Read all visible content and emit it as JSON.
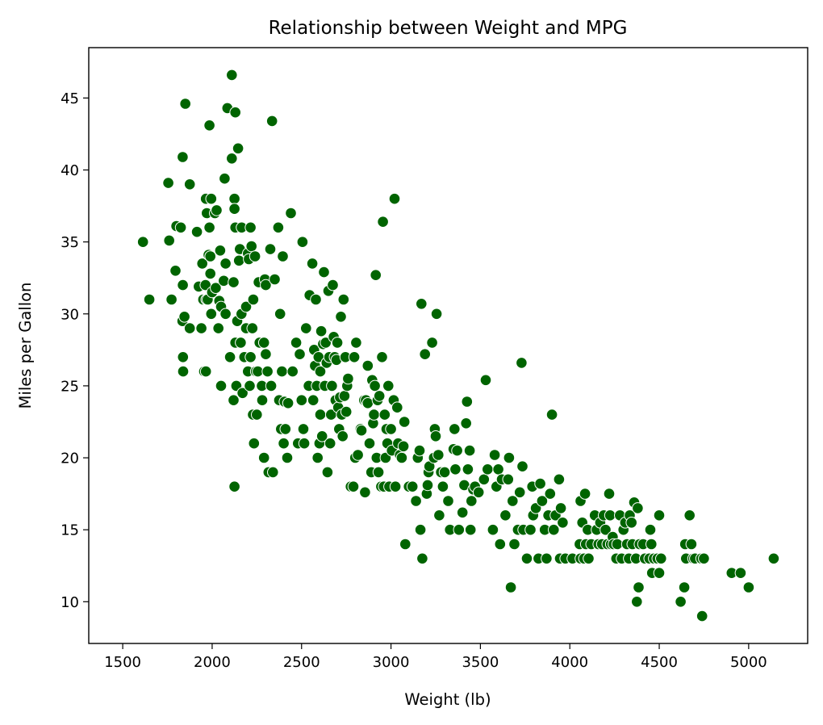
{
  "chart_data": {
    "type": "scatter",
    "title": "Relationship between Weight and MPG",
    "xlabel": "Weight (lb)",
    "ylabel": "Miles per Gallon",
    "xlim": [
      1310,
      5330
    ],
    "ylim": [
      7.1,
      48.5
    ],
    "xticks": [
      1500,
      2000,
      2500,
      3000,
      3500,
      4000,
      4500,
      5000
    ],
    "yticks": [
      10,
      15,
      20,
      25,
      30,
      35,
      40,
      45
    ],
    "grid": false,
    "legend": "none",
    "marker_color": "#006400",
    "marker_edge_color": "#ffffff",
    "points": [
      [
        1613,
        35
      ],
      [
        1649,
        31
      ],
      [
        1755,
        39.1
      ],
      [
        1760,
        35.1
      ],
      [
        1773,
        31
      ],
      [
        1795,
        33
      ],
      [
        1800,
        36.1
      ],
      [
        1825,
        36
      ],
      [
        1834,
        29.5
      ],
      [
        1835,
        40.9
      ],
      [
        1836,
        32
      ],
      [
        1837,
        27
      ],
      [
        1838,
        26
      ],
      [
        1845,
        29.8
      ],
      [
        1850,
        44.6
      ],
      [
        1875,
        39
      ],
      [
        1875,
        29
      ],
      [
        1915,
        35.7
      ],
      [
        1925,
        31.9
      ],
      [
        1940,
        29
      ],
      [
        1945,
        33.5
      ],
      [
        1950,
        31
      ],
      [
        1955,
        26
      ],
      [
        1963,
        32
      ],
      [
        1965,
        26
      ],
      [
        1965,
        38
      ],
      [
        1968,
        31
      ],
      [
        1970,
        37
      ],
      [
        1975,
        31
      ],
      [
        1980,
        34.1
      ],
      [
        1985,
        36
      ],
      [
        1985,
        43.1
      ],
      [
        1990,
        34
      ],
      [
        1990,
        32.8
      ],
      [
        1995,
        30
      ],
      [
        1995,
        38
      ],
      [
        2000,
        31.5
      ],
      [
        2015,
        37
      ],
      [
        2020,
        31.8
      ],
      [
        2025,
        37.2
      ],
      [
        2035,
        29
      ],
      [
        2040,
        30.9
      ],
      [
        2045,
        34.4
      ],
      [
        2050,
        30.5
      ],
      [
        2050,
        25
      ],
      [
        2065,
        32.3
      ],
      [
        2070,
        39.4
      ],
      [
        2075,
        33.5
      ],
      [
        2075,
        30
      ],
      [
        2085,
        44.3
      ],
      [
        2100,
        27
      ],
      [
        2110,
        46.6
      ],
      [
        2110,
        40.8
      ],
      [
        2120,
        32.2
      ],
      [
        2120,
        24
      ],
      [
        2125,
        18
      ],
      [
        2125,
        38
      ],
      [
        2125,
        37.3
      ],
      [
        2130,
        36
      ],
      [
        2130,
        28
      ],
      [
        2130,
        44
      ],
      [
        2135,
        25
      ],
      [
        2140,
        29.5
      ],
      [
        2145,
        41.5
      ],
      [
        2150,
        33.7
      ],
      [
        2155,
        34.5
      ],
      [
        2160,
        28
      ],
      [
        2164,
        30
      ],
      [
        2165,
        36
      ],
      [
        2170,
        24.5
      ],
      [
        2180,
        27
      ],
      [
        2190,
        29
      ],
      [
        2190,
        30.5
      ],
      [
        2200,
        34.2
      ],
      [
        2200,
        26
      ],
      [
        2205,
        33.8
      ],
      [
        2210,
        25
      ],
      [
        2215,
        27
      ],
      [
        2215,
        36
      ],
      [
        2220,
        34.7
      ],
      [
        2225,
        29
      ],
      [
        2228,
        23
      ],
      [
        2230,
        31
      ],
      [
        2234,
        21
      ],
      [
        2240,
        34
      ],
      [
        2245,
        26
      ],
      [
        2250,
        23
      ],
      [
        2255,
        26
      ],
      [
        2260,
        32.2
      ],
      [
        2265,
        28
      ],
      [
        2278,
        25
      ],
      [
        2280,
        24
      ],
      [
        2290,
        28
      ],
      [
        2290,
        20
      ],
      [
        2295,
        32.4
      ],
      [
        2300,
        27.2
      ],
      [
        2300,
        32
      ],
      [
        2310,
        26
      ],
      [
        2315,
        19
      ],
      [
        2325,
        34.5
      ],
      [
        2330,
        25
      ],
      [
        2335,
        43.4
      ],
      [
        2340,
        19
      ],
      [
        2350,
        32.4
      ],
      [
        2370,
        36
      ],
      [
        2375,
        24
      ],
      [
        2380,
        30
      ],
      [
        2385,
        22
      ],
      [
        2390,
        26
      ],
      [
        2395,
        34
      ],
      [
        2400,
        21
      ],
      [
        2405,
        23.9
      ],
      [
        2410,
        22
      ],
      [
        2420,
        20
      ],
      [
        2425,
        23.8
      ],
      [
        2440,
        37
      ],
      [
        2450,
        26
      ],
      [
        2470,
        28
      ],
      [
        2480,
        21
      ],
      [
        2490,
        27.2
      ],
      [
        2500,
        24
      ],
      [
        2505,
        35
      ],
      [
        2510,
        22
      ],
      [
        2515,
        21
      ],
      [
        2525,
        29
      ],
      [
        2540,
        25
      ],
      [
        2545,
        31.3
      ],
      [
        2560,
        33.5
      ],
      [
        2565,
        24
      ],
      [
        2570,
        27.5
      ],
      [
        2575,
        26.4
      ],
      [
        2580,
        31
      ],
      [
        2585,
        25
      ],
      [
        2590,
        20
      ],
      [
        2595,
        27
      ],
      [
        2600,
        21
      ],
      [
        2605,
        23
      ],
      [
        2605,
        26
      ],
      [
        2610,
        28.8
      ],
      [
        2615,
        21.5
      ],
      [
        2620,
        27.9
      ],
      [
        2625,
        32.9
      ],
      [
        2630,
        25
      ],
      [
        2635,
        28
      ],
      [
        2640,
        26.6
      ],
      [
        2645,
        19
      ],
      [
        2650,
        31.6
      ],
      [
        2655,
        27
      ],
      [
        2660,
        21
      ],
      [
        2665,
        23
      ],
      [
        2670,
        25
      ],
      [
        2675,
        32
      ],
      [
        2680,
        28.4
      ],
      [
        2685,
        27
      ],
      [
        2690,
        24
      ],
      [
        2695,
        26.8
      ],
      [
        2700,
        28
      ],
      [
        2705,
        23.5
      ],
      [
        2710,
        22
      ],
      [
        2715,
        24.2
      ],
      [
        2720,
        29.8
      ],
      [
        2725,
        23
      ],
      [
        2730,
        21.5
      ],
      [
        2735,
        31
      ],
      [
        2740,
        24.3
      ],
      [
        2745,
        27
      ],
      [
        2750,
        23.2
      ],
      [
        2755,
        25
      ],
      [
        2760,
        25.5
      ],
      [
        2775,
        18
      ],
      [
        2790,
        18
      ],
      [
        2795,
        27
      ],
      [
        2800,
        20
      ],
      [
        2805,
        28
      ],
      [
        2815,
        20.2
      ],
      [
        2830,
        22
      ],
      [
        2835,
        21.9
      ],
      [
        2850,
        24
      ],
      [
        2855,
        17.6
      ],
      [
        2860,
        24
      ],
      [
        2870,
        23.8
      ],
      [
        2870,
        26.4
      ],
      [
        2880,
        21
      ],
      [
        2890,
        19
      ],
      [
        2895,
        25.4
      ],
      [
        2900,
        22.4
      ],
      [
        2905,
        23
      ],
      [
        2910,
        25
      ],
      [
        2915,
        32.7
      ],
      [
        2920,
        20
      ],
      [
        2925,
        24
      ],
      [
        2930,
        19
      ],
      [
        2935,
        24.3
      ],
      [
        2945,
        18
      ],
      [
        2950,
        27
      ],
      [
        2955,
        36.4
      ],
      [
        2960,
        18
      ],
      [
        2965,
        23
      ],
      [
        2970,
        20
      ],
      [
        2975,
        22
      ],
      [
        2980,
        21
      ],
      [
        2985,
        25
      ],
      [
        2990,
        18
      ],
      [
        3000,
        22
      ],
      [
        3005,
        20.5
      ],
      [
        3015,
        24
      ],
      [
        3020,
        38
      ],
      [
        3025,
        18
      ],
      [
        3035,
        23.5
      ],
      [
        3040,
        21
      ],
      [
        3050,
        20.2
      ],
      [
        3060,
        20
      ],
      [
        3070,
        20.8
      ],
      [
        3075,
        22.5
      ],
      [
        3080,
        14
      ],
      [
        3100,
        18
      ],
      [
        3120,
        18
      ],
      [
        3140,
        17
      ],
      [
        3150,
        20
      ],
      [
        3160,
        20.5
      ],
      [
        3165,
        15
      ],
      [
        3170,
        30.7
      ],
      [
        3175,
        13
      ],
      [
        3190,
        27.2
      ],
      [
        3200,
        17.5
      ],
      [
        3205,
        18.1
      ],
      [
        3210,
        19
      ],
      [
        3215,
        19.4
      ],
      [
        3230,
        28
      ],
      [
        3240,
        20
      ],
      [
        3245,
        22
      ],
      [
        3250,
        21.5
      ],
      [
        3255,
        30
      ],
      [
        3265,
        20.2
      ],
      [
        3270,
        16
      ],
      [
        3280,
        19
      ],
      [
        3290,
        18
      ],
      [
        3300,
        19
      ],
      [
        3320,
        17
      ],
      [
        3330,
        15
      ],
      [
        3350,
        20.6
      ],
      [
        3355,
        22
      ],
      [
        3360,
        19.2
      ],
      [
        3370,
        20.5
      ],
      [
        3380,
        15
      ],
      [
        3400,
        16.2
      ],
      [
        3410,
        18.1
      ],
      [
        3420,
        22.4
      ],
      [
        3425,
        23.9
      ],
      [
        3430,
        19.2
      ],
      [
        3440,
        20.5
      ],
      [
        3445,
        15
      ],
      [
        3450,
        17
      ],
      [
        3460,
        17.8
      ],
      [
        3470,
        18
      ],
      [
        3490,
        17.6
      ],
      [
        3520,
        18.5
      ],
      [
        3530,
        25.4
      ],
      [
        3540,
        19.2
      ],
      [
        3570,
        15
      ],
      [
        3580,
        20.2
      ],
      [
        3590,
        18
      ],
      [
        3600,
        19.2
      ],
      [
        3610,
        14
      ],
      [
        3620,
        18.5
      ],
      [
        3640,
        16
      ],
      [
        3655,
        18.5
      ],
      [
        3660,
        20
      ],
      [
        3670,
        11
      ],
      [
        3680,
        17
      ],
      [
        3690,
        14
      ],
      [
        3710,
        15
      ],
      [
        3720,
        17.6
      ],
      [
        3730,
        26.6
      ],
      [
        3735,
        19.4
      ],
      [
        3740,
        15
      ],
      [
        3760,
        13
      ],
      [
        3780,
        15
      ],
      [
        3790,
        18
      ],
      [
        3795,
        16
      ],
      [
        3810,
        16.5
      ],
      [
        3825,
        13
      ],
      [
        3835,
        18.2
      ],
      [
        3845,
        17
      ],
      [
        3860,
        15
      ],
      [
        3870,
        13
      ],
      [
        3880,
        16
      ],
      [
        3890,
        17.5
      ],
      [
        3900,
        23
      ],
      [
        3910,
        15
      ],
      [
        3920,
        16
      ],
      [
        3940,
        18.5
      ],
      [
        3945,
        13
      ],
      [
        3950,
        16.5
      ],
      [
        3960,
        15.5
      ],
      [
        3975,
        13
      ],
      [
        4015,
        13
      ],
      [
        4055,
        14
      ],
      [
        4060,
        13
      ],
      [
        4060,
        17
      ],
      [
        4070,
        15.5
      ],
      [
        4080,
        13
      ],
      [
        4085,
        17.5
      ],
      [
        4090,
        14
      ],
      [
        4100,
        15
      ],
      [
        4105,
        13
      ],
      [
        4120,
        14
      ],
      [
        4140,
        16
      ],
      [
        4150,
        15
      ],
      [
        4160,
        14
      ],
      [
        4170,
        15.5
      ],
      [
        4180,
        14
      ],
      [
        4190,
        16
      ],
      [
        4200,
        15
      ],
      [
        4210,
        14
      ],
      [
        4220,
        17.5
      ],
      [
        4225,
        16
      ],
      [
        4230,
        14
      ],
      [
        4240,
        14.5
      ],
      [
        4245,
        14
      ],
      [
        4260,
        13
      ],
      [
        4265,
        14
      ],
      [
        4280,
        16
      ],
      [
        4290,
        13
      ],
      [
        4300,
        15
      ],
      [
        4310,
        15.5
      ],
      [
        4320,
        14
      ],
      [
        4330,
        13
      ],
      [
        4335,
        16
      ],
      [
        4345,
        15.5
      ],
      [
        4350,
        14
      ],
      [
        4360,
        16.9
      ],
      [
        4370,
        13
      ],
      [
        4375,
        10
      ],
      [
        4380,
        16.5
      ],
      [
        4385,
        11
      ],
      [
        4390,
        14
      ],
      [
        4410,
        14
      ],
      [
        4420,
        13
      ],
      [
        4445,
        13
      ],
      [
        4450,
        15
      ],
      [
        4456,
        14
      ],
      [
        4460,
        12
      ],
      [
        4470,
        13
      ],
      [
        4490,
        13
      ],
      [
        4500,
        12
      ],
      [
        4500,
        16
      ],
      [
        4510,
        13
      ],
      [
        4620,
        10
      ],
      [
        4640,
        11
      ],
      [
        4645,
        14
      ],
      [
        4650,
        13
      ],
      [
        4670,
        16
      ],
      [
        4680,
        14
      ],
      [
        4690,
        13
      ],
      [
        4700,
        13
      ],
      [
        4735,
        13
      ],
      [
        4740,
        9
      ],
      [
        4750,
        13
      ],
      [
        4905,
        12
      ],
      [
        4955,
        12
      ],
      [
        5000,
        11
      ],
      [
        5140,
        13
      ]
    ]
  }
}
